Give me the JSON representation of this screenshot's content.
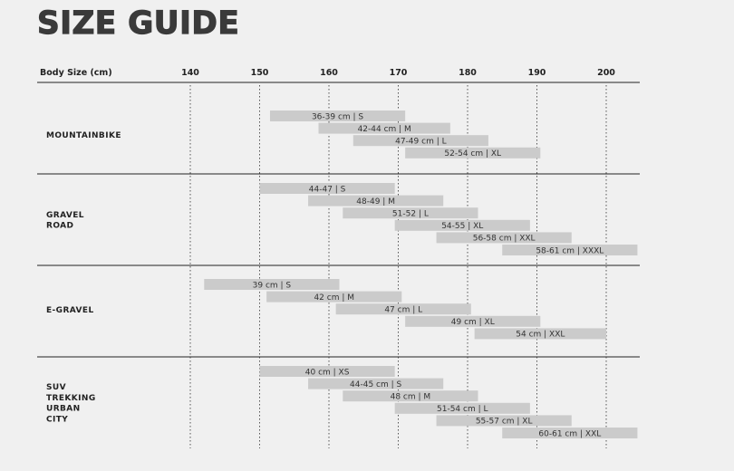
{
  "page": {
    "title": "SIZE GUIDE"
  },
  "chart_data": {
    "type": "bar",
    "orientation": "horizontal-range",
    "xlabel": "Body Size (cm)",
    "xticks": [
      140,
      150,
      160,
      170,
      180,
      190,
      200
    ],
    "xlim": [
      118,
      205
    ],
    "grid": true,
    "groups": [
      {
        "name_lines": [
          "MOUNTAINBIKE"
        ],
        "bars": [
          {
            "label": "36-39 cm | S",
            "start": 151.5,
            "end": 171.0
          },
          {
            "label": "42-44 cm | M",
            "start": 158.5,
            "end": 177.5
          },
          {
            "label": "47-49 cm | L",
            "start": 163.5,
            "end": 183.0
          },
          {
            "label": "52-54 cm | XL",
            "start": 171.0,
            "end": 190.5
          }
        ]
      },
      {
        "name_lines": [
          "GRAVEL",
          "ROAD"
        ],
        "bars": [
          {
            "label": "44-47 | S",
            "start": 150.0,
            "end": 169.5
          },
          {
            "label": "48-49 | M",
            "start": 157.0,
            "end": 176.5
          },
          {
            "label": "51-52 | L",
            "start": 162.0,
            "end": 181.5
          },
          {
            "label": "54-55 | XL",
            "start": 169.5,
            "end": 189.0
          },
          {
            "label": "56-58 cm | XXL",
            "start": 175.5,
            "end": 195.0
          },
          {
            "label": "58-61 cm | XXXL",
            "start": 185.0,
            "end": 204.5
          }
        ]
      },
      {
        "name_lines": [
          "E-GRAVEL"
        ],
        "bars": [
          {
            "label": "39 cm | S",
            "start": 142.0,
            "end": 161.5
          },
          {
            "label": "42 cm | M",
            "start": 151.0,
            "end": 170.5
          },
          {
            "label": "47 cm | L",
            "start": 161.0,
            "end": 180.5
          },
          {
            "label": "49 cm | XL",
            "start": 171.0,
            "end": 190.5
          },
          {
            "label": "54 cm | XXL",
            "start": 181.0,
            "end": 200.0
          }
        ]
      },
      {
        "name_lines": [
          "SUV",
          "TREKKING",
          "URBAN",
          "CITY"
        ],
        "bars": [
          {
            "label": "40 cm | XS",
            "start": 150.0,
            "end": 169.5
          },
          {
            "label": "44-45 cm | S",
            "start": 157.0,
            "end": 176.5
          },
          {
            "label": "48 cm | M",
            "start": 162.0,
            "end": 181.5
          },
          {
            "label": "51-54 cm | L",
            "start": 169.5,
            "end": 189.0
          },
          {
            "label": "55-57 cm | XL",
            "start": 175.5,
            "end": 195.0
          },
          {
            "label": "60-61 cm | XXL",
            "start": 185.0,
            "end": 204.5
          }
        ]
      }
    ]
  }
}
